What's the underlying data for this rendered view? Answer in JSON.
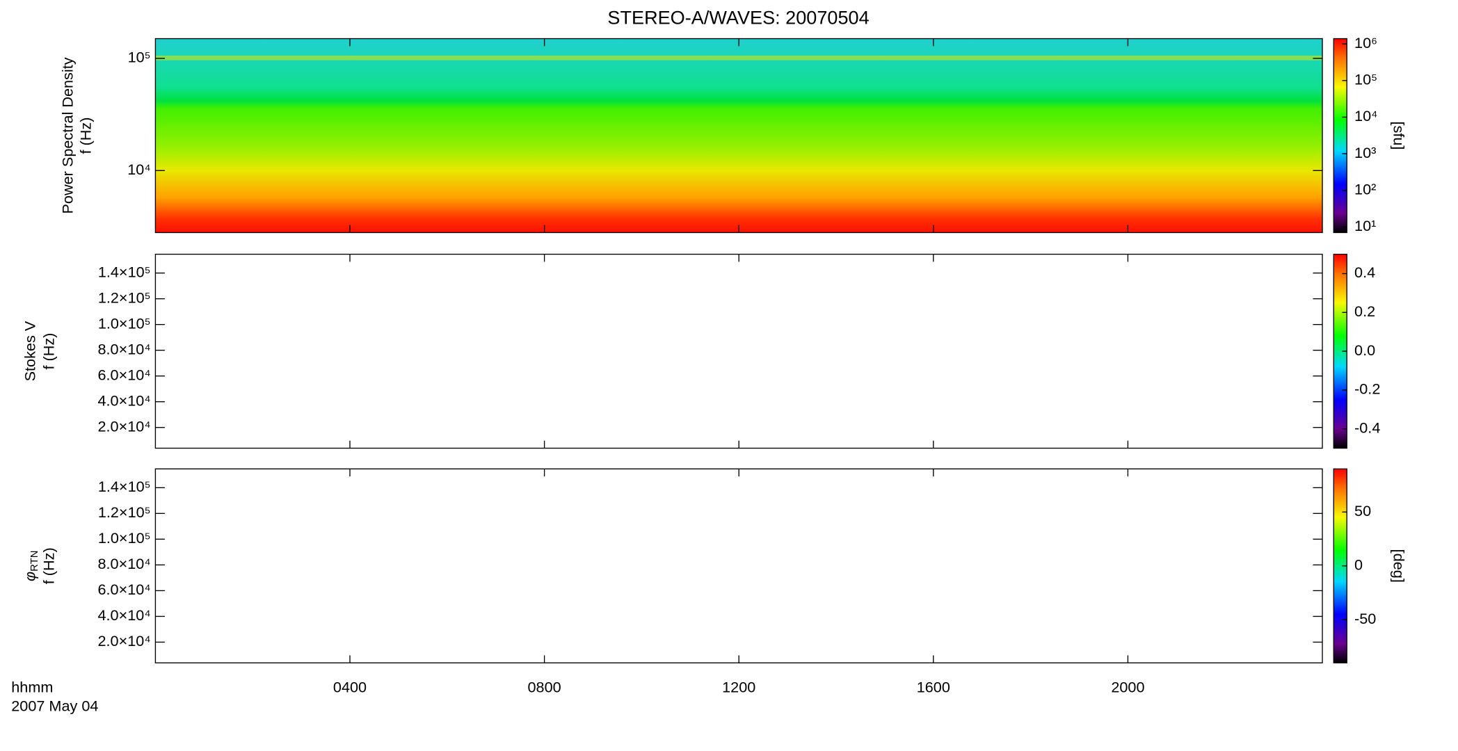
{
  "chart_data": [
    {
      "type": "spectrogram",
      "title": "STEREO-A/WAVES: 20070504",
      "ylabel": "Power Spectral Density",
      "ylabel2": "f (Hz)",
      "ylog": true,
      "ylim": [
        2800,
        150000
      ],
      "yticks": [
        {
          "value": 10000,
          "label": "10⁴"
        },
        {
          "value": 100000,
          "label": "10⁵"
        }
      ],
      "xlim": [
        0,
        24
      ],
      "xticks": [
        4,
        8,
        12,
        16,
        20
      ],
      "colorbar": {
        "label": "[sfu]",
        "log": true,
        "clim": [
          7,
          1400000
        ],
        "ticks": [
          {
            "value": 10,
            "label": "10¹"
          },
          {
            "value": 100,
            "label": "10²"
          },
          {
            "value": 1000,
            "label": "10³"
          },
          {
            "value": 10000,
            "label": "10⁴"
          },
          {
            "value": 100000,
            "label": "10⁵"
          },
          {
            "value": 1000000,
            "label": "10⁶"
          }
        ]
      }
    },
    {
      "type": "spectrogram",
      "ylabel": "Stokes V",
      "ylabel2": "f (Hz)",
      "ylog": false,
      "ylim": [
        3900,
        154600
      ],
      "yticks": [
        {
          "value": 20000,
          "label": "2.0×10⁴"
        },
        {
          "value": 40000,
          "label": "4.0×10⁴"
        },
        {
          "value": 60000,
          "label": "6.0×10⁴"
        },
        {
          "value": 80000,
          "label": "8.0×10⁴"
        },
        {
          "value": 100000,
          "label": "1.0×10⁵"
        },
        {
          "value": 120000,
          "label": "1.2×10⁵"
        },
        {
          "value": 140000,
          "label": "1.4×10⁵"
        }
      ],
      "xlim": [
        0,
        24
      ],
      "xticks": [
        4,
        8,
        12,
        16,
        20
      ],
      "colorbar": {
        "log": false,
        "clim": [
          -0.5,
          0.5
        ],
        "ticks": [
          -0.4,
          -0.2,
          {
            "value": 0,
            "label": "0.0"
          },
          0.2,
          0.4
        ]
      }
    },
    {
      "type": "spectrogram",
      "ylabel_symbol": "φ",
      "ylabel_subscript": "RTN",
      "ylabel2": "f (Hz)",
      "ylog": false,
      "ylim": [
        3900,
        154600
      ],
      "yticks": [
        {
          "value": 20000,
          "label": "2.0×10⁴"
        },
        {
          "value": 40000,
          "label": "4.0×10⁴"
        },
        {
          "value": 60000,
          "label": "6.0×10⁴"
        },
        {
          "value": 80000,
          "label": "8.0×10⁴"
        },
        {
          "value": 100000,
          "label": "1.0×10⁵"
        },
        {
          "value": 120000,
          "label": "1.2×10⁵"
        },
        {
          "value": 140000,
          "label": "1.4×10⁵"
        }
      ],
      "xlim": [
        0,
        24
      ],
      "xticks": [
        {
          "value": 4,
          "label": "0400"
        },
        {
          "value": 8,
          "label": "0800"
        },
        {
          "value": 12,
          "label": "1200"
        },
        {
          "value": 16,
          "label": "1600"
        },
        {
          "value": 20,
          "label": "2000"
        }
      ],
      "xlabel": "hhmm",
      "date": "2007 May 04",
      "colorbar": {
        "label": "[deg]",
        "log": false,
        "clim": [
          -90,
          90
        ],
        "ticks": [
          -50,
          0,
          50
        ]
      }
    }
  ]
}
